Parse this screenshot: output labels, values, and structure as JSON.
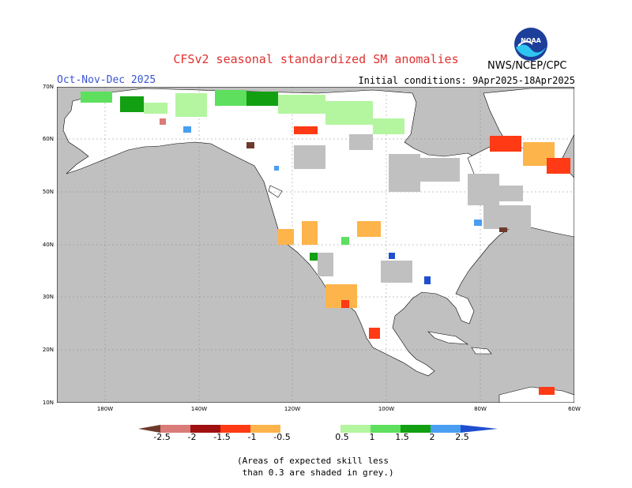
{
  "header": {
    "title": "CFSv2 seasonal standardized SM anomalies",
    "period": "Oct-Nov-Dec 2025",
    "initial_conditions": "Initial conditions: 9Apr2025-18Apr2025",
    "agency": "NWS/NCEP/CPC",
    "logo_text": "NOAA"
  },
  "map": {
    "lat_labels": [
      "70N",
      "60N",
      "50N",
      "40N",
      "30N",
      "20N",
      "10N"
    ],
    "lon_labels": [
      "180W",
      "140W",
      "120W",
      "100W",
      "80W",
      "60W"
    ],
    "colors": {
      "background": "#c0c0c0",
      "land_nonskill": "#ffffff",
      "neg_2_5": "#6e3a2c",
      "neg_2": "#d97b78",
      "neg_1_5": "#a01010",
      "neg_1": "#ff3a14",
      "neg_0_5": "#fdb44a",
      "pos_0_5": "#b4f5a0",
      "pos_1": "#5ee05e",
      "pos_1_5": "#12a012",
      "pos_2": "#4a9ef2",
      "pos_2_5": "#1f4fcf"
    }
  },
  "colorbar": {
    "labels": [
      "-2.5",
      "-2",
      "-1.5",
      "-1",
      "-0.5",
      "0.5",
      "1",
      "1.5",
      "2",
      "2.5"
    ]
  },
  "note": {
    "line1": "(Areas of expected skill less",
    "line2": " than 0.3 are shaded in grey.)"
  }
}
